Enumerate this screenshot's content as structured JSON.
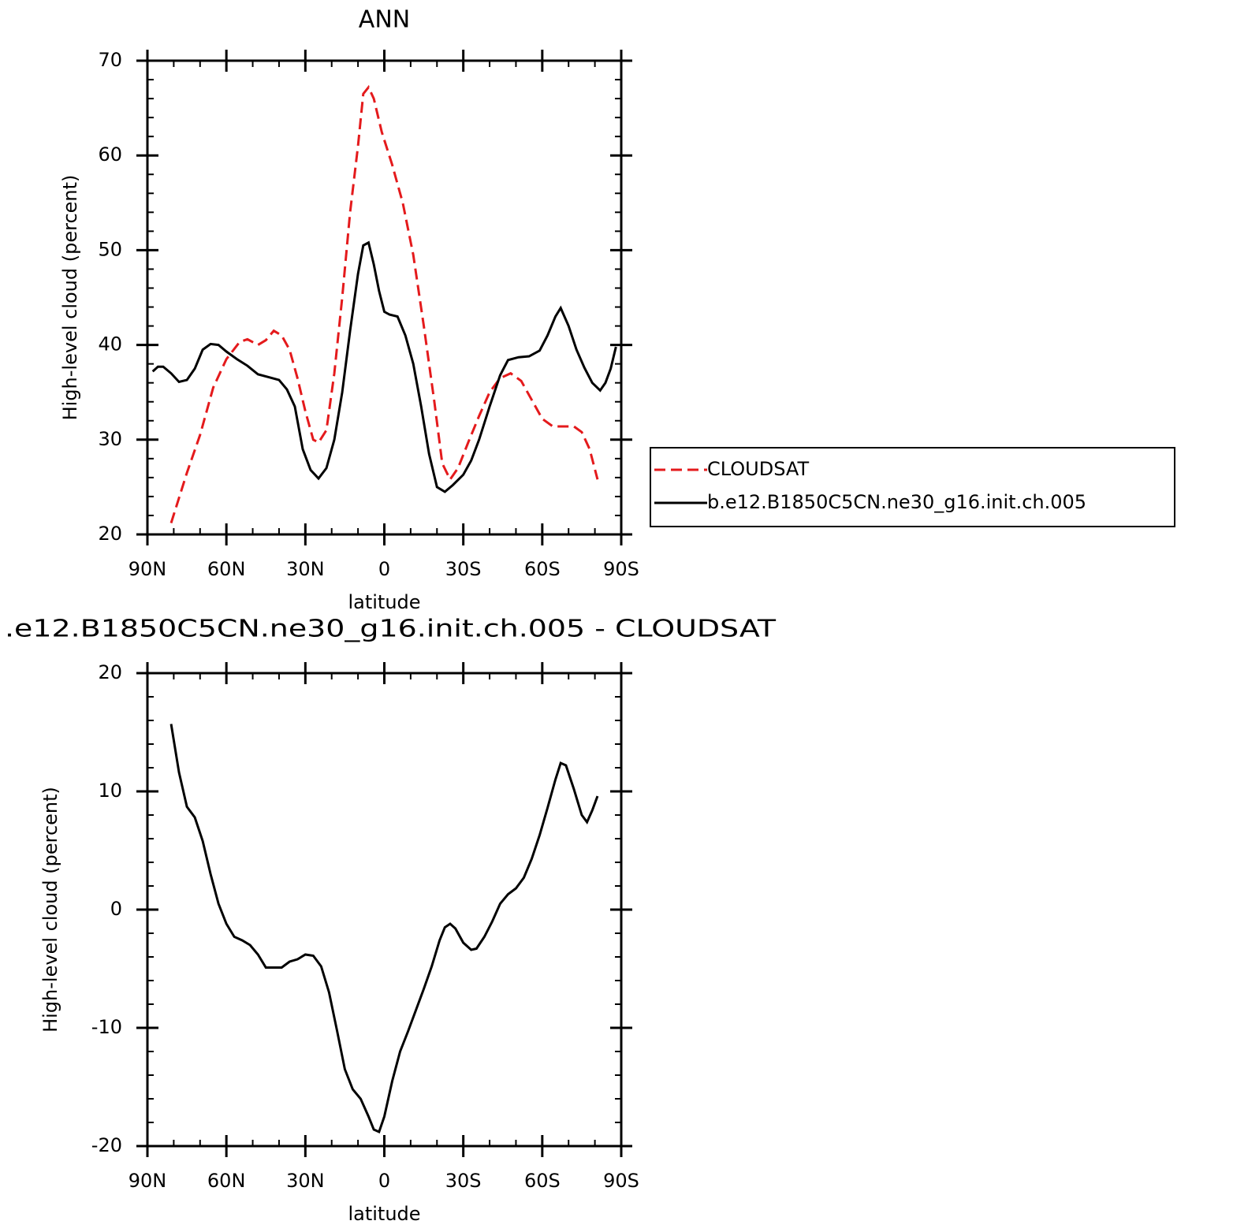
{
  "chart_data": [
    {
      "type": "line",
      "title": "ANN",
      "xlabel": "latitude",
      "ylabel": "High-level cloud (percent)",
      "xlim": [
        90,
        -90
      ],
      "ylim": [
        20,
        70
      ],
      "xticks": [
        {
          "value": 90,
          "label": "90N"
        },
        {
          "value": 60,
          "label": "60N"
        },
        {
          "value": 30,
          "label": "30N"
        },
        0,
        {
          "value": -30,
          "label": "30S"
        },
        {
          "value": -60,
          "label": "60S"
        },
        {
          "value": -90,
          "label": "90S"
        }
      ],
      "yticks": [
        20,
        30,
        40,
        50,
        60,
        70
      ],
      "legend": "outside right",
      "series": [
        {
          "name": "CLOUDSAT",
          "color": "#e41a1c",
          "linestyle": "dashed",
          "x": [
            81,
            75,
            70,
            65,
            60,
            55,
            52,
            48,
            45,
            42,
            39,
            36,
            33,
            30,
            27,
            25,
            22,
            19,
            16,
            13,
            10,
            8,
            6,
            4,
            1,
            -3,
            -7,
            -11,
            -15,
            -19,
            -22,
            -25,
            -28,
            -32,
            -36,
            -40,
            -44,
            -48,
            -52,
            -56,
            -60,
            -64,
            -68,
            -72,
            -75,
            -78,
            -81
          ],
          "values": [
            21.2,
            26.5,
            30.5,
            35.5,
            38.5,
            40.3,
            40.6,
            40.0,
            40.5,
            41.5,
            41.0,
            39.5,
            36.5,
            33,
            30,
            29.7,
            31,
            37,
            45,
            54,
            61,
            66.5,
            67.2,
            66,
            62.5,
            59,
            55,
            49.5,
            42,
            34,
            27.5,
            25.8,
            27,
            29.8,
            32.5,
            35,
            36.5,
            37,
            36.2,
            34.2,
            32.2,
            31.4,
            31.4,
            31.4,
            30.8,
            29,
            25.8
          ]
        },
        {
          "name": "b.e12.B1850C5CN.ne30_g16.init.ch.005",
          "color": "#000000",
          "linestyle": "solid",
          "x": [
            88,
            86,
            84,
            81,
            78,
            75,
            72,
            69,
            66,
            63,
            60,
            56,
            52,
            48,
            44,
            40,
            37,
            34,
            31,
            28,
            25,
            22,
            19,
            16,
            13,
            10,
            8,
            6,
            4,
            2,
            0,
            -2,
            -5,
            -8,
            -11,
            -14,
            -17,
            -20,
            -23,
            -26,
            -30,
            -33,
            -36,
            -40,
            -44,
            -47,
            -51,
            -55,
            -59,
            -62,
            -65,
            -67,
            -70,
            -73,
            -76,
            -79,
            -82,
            -84,
            -86,
            -88
          ],
          "values": [
            37.2,
            37.7,
            37.7,
            37,
            36.1,
            36.3,
            37.5,
            39.5,
            40.1,
            40,
            39.3,
            38.5,
            37.8,
            36.9,
            36.6,
            36.3,
            35.3,
            33.5,
            29,
            26.8,
            25.9,
            27,
            30,
            35,
            41.5,
            47.5,
            50.5,
            50.8,
            48.5,
            45.7,
            43.5,
            43.2,
            43,
            41,
            38,
            33.5,
            28.5,
            25,
            24.5,
            25.2,
            26.3,
            27.8,
            30,
            33.5,
            36.8,
            38.4,
            38.7,
            38.8,
            39.4,
            41,
            43,
            43.9,
            42,
            39.5,
            37.6,
            36,
            35.2,
            36,
            37.5,
            39.8
          ]
        }
      ]
    },
    {
      "type": "line",
      "title": ".e12.B1850C5CN.ne30_g16.init.ch.005 - CLOUDSAT",
      "xlabel": "latitude",
      "ylabel": "High-level cloud (percent)",
      "xlim": [
        90,
        -90
      ],
      "ylim": [
        -20,
        20
      ],
      "xticks": [
        {
          "value": 90,
          "label": "90N"
        },
        {
          "value": 60,
          "label": "60N"
        },
        {
          "value": 30,
          "label": "30N"
        },
        0,
        {
          "value": -30,
          "label": "30S"
        },
        {
          "value": -60,
          "label": "60S"
        },
        {
          "value": -90,
          "label": "90S"
        }
      ],
      "yticks": [
        -20,
        -10,
        0,
        10,
        20
      ],
      "color": "#000000",
      "x": [
        81,
        78,
        75,
        72,
        69,
        66,
        63,
        60,
        57,
        54,
        51,
        48,
        45,
        42,
        39,
        36,
        33,
        30,
        27,
        24,
        21,
        18,
        15,
        12,
        9,
        6,
        4,
        2,
        0,
        -3,
        -6,
        -9,
        -12,
        -15,
        -18,
        -21,
        -23,
        -25,
        -27,
        -30,
        -33,
        -35,
        -38,
        -41,
        -44,
        -47,
        -50,
        -53,
        -56,
        -59,
        -62,
        -65,
        -67,
        -69,
        -72,
        -75,
        -77,
        -79,
        -81
      ],
      "values": [
        15.7,
        11.6,
        8.7,
        7.8,
        5.8,
        3,
        0.5,
        -1.2,
        -2.3,
        -2.6,
        -3,
        -3.8,
        -4.9,
        -4.9,
        -4.9,
        -4.4,
        -4.2,
        -3.8,
        -3.9,
        -4.8,
        -7,
        -10.2,
        -13.5,
        -15.2,
        -16,
        -17.5,
        -18.6,
        -18.8,
        -17.5,
        -14.5,
        -12,
        -10.3,
        -8.5,
        -6.7,
        -4.8,
        -2.6,
        -1.5,
        -1.2,
        -1.6,
        -2.8,
        -3.4,
        -3.3,
        -2.3,
        -1,
        0.5,
        1.3,
        1.8,
        2.7,
        4.3,
        6.3,
        8.6,
        11,
        12.4,
        12.2,
        10.2,
        8,
        7.4,
        8.4,
        9.6
      ]
    }
  ]
}
